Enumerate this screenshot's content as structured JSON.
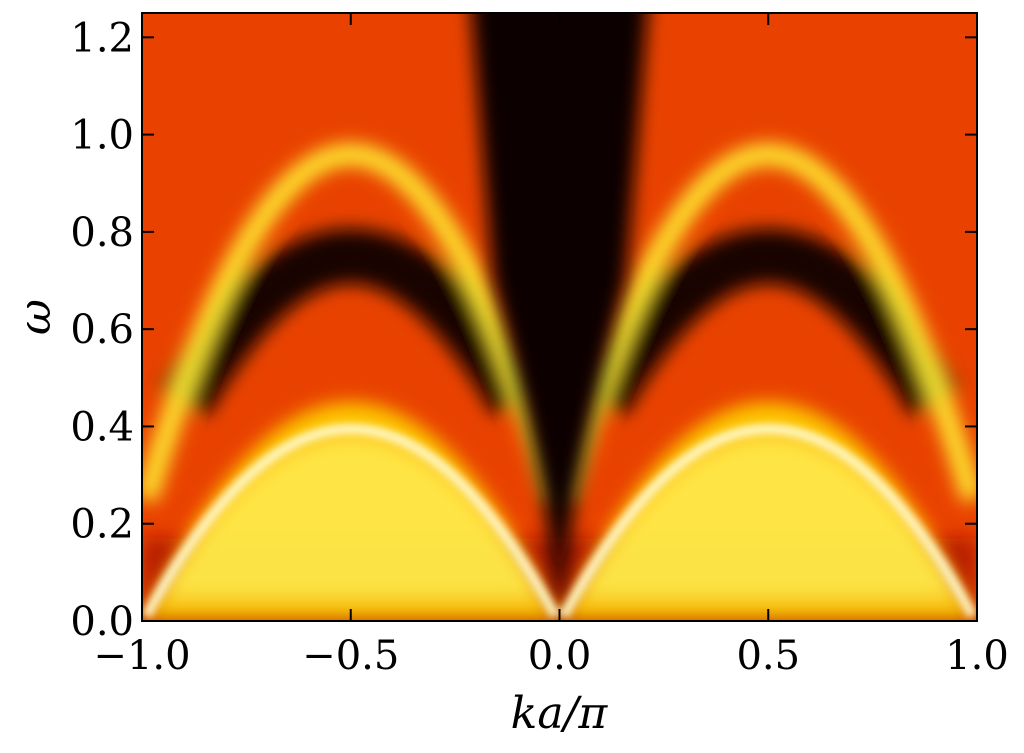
{
  "chart_data": {
    "type": "heatmap",
    "title": "",
    "xlabel": "ka/π",
    "ylabel": "ω",
    "xlim": [
      -1.0,
      1.0
    ],
    "ylim": [
      0.0,
      1.25
    ],
    "x_ticks": [
      -1.0,
      -0.5,
      0.0,
      0.5,
      1.0
    ],
    "x_tick_labels": [
      "−1.0",
      "−0.5",
      "0.0",
      "0.5",
      "1.0"
    ],
    "y_ticks": [
      0.0,
      0.2,
      0.4,
      0.6,
      0.8,
      1.0,
      1.2
    ],
    "y_tick_labels": [
      "0.0",
      "0.2",
      "0.4",
      "0.6",
      "0.8",
      "1.0",
      "1.2"
    ],
    "colormap": "hot",
    "colors": {
      "low": "#0b0000",
      "mid": "#e63200",
      "high": "#ffff80"
    },
    "dispersion_branches": [
      {
        "name": "",
        "peak_omega": 0.45,
        "peak_ka_over_pi": 0.5
      },
      {
        "name": "",
        "peak_omega": 0.97,
        "peak_ka_over_pi": 0.5
      }
    ]
  }
}
